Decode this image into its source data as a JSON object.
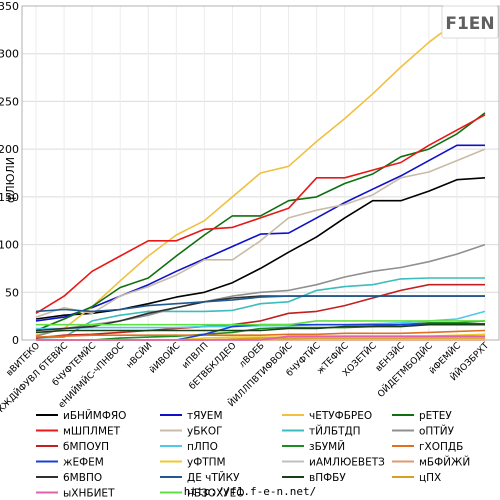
{
  "footer": {
    "url": "http://f1.f-e-n.net/"
  },
  "logo": {
    "text": "F1EN"
  },
  "chart_data": {
    "type": "line",
    "ylabel": "фЛЮЛИ",
    "ylim": [
      0,
      350
    ],
    "yticks": [
      0,
      50,
      100,
      150,
      200,
      250,
      300,
      350
    ],
    "grid": true,
    "legend_position": "bottom",
    "categories": [
      "вВИТЕКО",
      "ЖЖДЙФУВЛ бТЕВЙС",
      "бЧУФТЕМЙС",
      "еНИЙМЙС-чПНВОС",
      "нВСЙИ",
      "йИВОЙС",
      "иПВЛП",
      "бЕТВБКЛДЕО",
      "лВОЕБ",
      "ЙИЛЛПВТИФВОЙС",
      "бЧУФТЙС",
      "жТЕФЙС",
      "ХОЗЕТЙС",
      "вЕНЗЙС",
      "ОЙДЕТМБОДЙС",
      "йФЕМЙС",
      "ЙЙОЗБРХТ"
    ],
    "series": [
      {
        "name": "иБНЙМФЯО",
        "color": "#000000",
        "values": [
          22,
          26,
          28,
          32,
          38,
          45,
          50,
          60,
          75,
          92,
          108,
          128,
          146,
          146,
          156,
          168,
          170
        ]
      },
      {
        "name": "тЯУЕМ",
        "color": "#1010c8",
        "values": [
          20,
          24,
          34,
          46,
          58,
          72,
          85,
          98,
          111,
          112,
          128,
          144,
          158,
          172,
          188,
          204,
          204
        ]
      },
      {
        "name": "чЕТУФБРЕО",
        "color": "#f0c040",
        "values": [
          5,
          12,
          35,
          62,
          88,
          110,
          125,
          150,
          175,
          182,
          208,
          232,
          258,
          286,
          312,
          334,
          340
        ]
      },
      {
        "name": "рЕТЕУ",
        "color": "#107010",
        "values": [
          10,
          22,
          35,
          55,
          65,
          88,
          110,
          130,
          130,
          146,
          150,
          164,
          174,
          192,
          200,
          216,
          238
        ]
      },
      {
        "name": "мШПЛМЕТ",
        "color": "#e81818",
        "values": [
          28,
          46,
          72,
          88,
          104,
          104,
          116,
          118,
          128,
          138,
          170,
          170,
          178,
          186,
          204,
          220,
          236
        ]
      },
      {
        "name": "уБКОГ",
        "color": "#c8bca8",
        "values": [
          24,
          34,
          28,
          46,
          56,
          68,
          84,
          84,
          104,
          128,
          136,
          142,
          152,
          170,
          176,
          188,
          200
        ]
      },
      {
        "name": "тЙЛБТДП",
        "color": "#3cbcbc",
        "values": [
          2,
          3,
          20,
          26,
          30,
          30,
          30,
          31,
          38,
          40,
          52,
          56,
          58,
          64,
          65,
          65,
          65
        ]
      },
      {
        "name": "оПТЙУ",
        "color": "#909090",
        "values": [
          4,
          12,
          16,
          20,
          26,
          34,
          40,
          46,
          50,
          52,
          58,
          66,
          72,
          76,
          82,
          90,
          100
        ]
      },
      {
        "name": "бМПОУП",
        "color": "#c02020",
        "values": [
          2,
          5,
          6,
          8,
          10,
          12,
          14,
          16,
          20,
          28,
          30,
          36,
          44,
          52,
          58,
          58,
          58
        ]
      },
      {
        "name": "пЛПО",
        "color": "#50c8e8",
        "values": [
          12,
          12,
          13,
          13,
          13,
          13,
          14,
          14,
          15,
          15,
          16,
          16,
          17,
          18,
          20,
          22,
          30
        ]
      },
      {
        "name": "зБУМЙ",
        "color": "#1e8c1e",
        "values": [
          0,
          0,
          0,
          2,
          3,
          4,
          6,
          8,
          12,
          13,
          13,
          13,
          14,
          16,
          18,
          18,
          20
        ]
      },
      {
        "name": "гХОПДБ",
        "color": "#e07020",
        "values": [
          3,
          4,
          5,
          5,
          5,
          5,
          5,
          5,
          5,
          6,
          6,
          7,
          7,
          7,
          8,
          9,
          10
        ]
      },
      {
        "name": "жЕФЕМ",
        "color": "#1840d8",
        "values": [
          0,
          0,
          0,
          0,
          0,
          0,
          6,
          14,
          16,
          16,
          16,
          16,
          16,
          16,
          17,
          17,
          17
        ]
      },
      {
        "name": "уФТПМ",
        "color": "#f0c828",
        "values": [
          0,
          0,
          0,
          0,
          0,
          0,
          2,
          3,
          3,
          3,
          3,
          4,
          4,
          4,
          4,
          5,
          6
        ]
      },
      {
        "name": "иАМЛЮЕВЕТЗ",
        "color": "#c0c0c0",
        "values": [
          0,
          0,
          0,
          0,
          0,
          0,
          0,
          1,
          1,
          1,
          2,
          2,
          2,
          2,
          3,
          3,
          3
        ]
      },
      {
        "name": "мБФЙЖЙ",
        "color": "#e09870",
        "values": [
          0,
          0,
          0,
          0,
          0,
          0,
          0,
          0,
          0,
          0,
          0,
          0,
          0,
          0,
          0,
          0,
          0
        ]
      },
      {
        "name": "6МВПО",
        "color": "#303030",
        "values": [
          10,
          12,
          14,
          20,
          28,
          34,
          40,
          44,
          46,
          46,
          46,
          46,
          46,
          46,
          46,
          46,
          46
        ]
      },
      {
        "name": "ДЕ чТЙКУ",
        "color": "#205890",
        "values": [
          30,
          32,
          30,
          32,
          36,
          38,
          40,
          42,
          45,
          46,
          46,
          46,
          46,
          46,
          46,
          46,
          46
        ]
      },
      {
        "name": "вПФБУ",
        "color": "#184018",
        "values": [
          8,
          10,
          10,
          10,
          10,
          10,
          10,
          10,
          10,
          12,
          12,
          14,
          14,
          14,
          16,
          16,
          16
        ]
      },
      {
        "name": "цПХ",
        "color": "#d8a020",
        "values": [
          0,
          0,
          0,
          0,
          0,
          0,
          0,
          1,
          2,
          2,
          2,
          2,
          2,
          2,
          2,
          2,
          2
        ]
      },
      {
        "name": "ыХНБИЕТ",
        "color": "#e060b0",
        "values": [
          0,
          0,
          0,
          0,
          0,
          0,
          0,
          0,
          0,
          4,
          4,
          4,
          4,
          4,
          4,
          4,
          4
        ]
      },
      {
        "name": "нБЗОХУЕО",
        "color": "#60e040",
        "values": [
          16,
          16,
          16,
          16,
          16,
          16,
          16,
          16,
          16,
          16,
          20,
          20,
          20,
          20,
          20,
          20,
          20
        ]
      }
    ]
  }
}
